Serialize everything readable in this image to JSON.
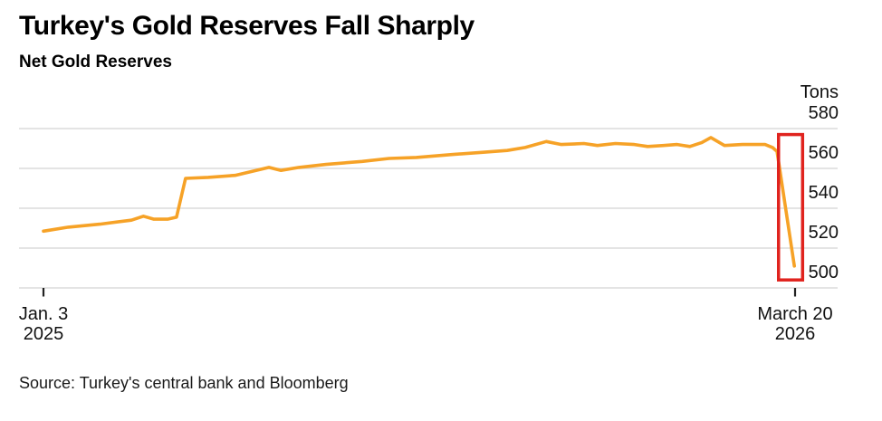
{
  "header": {
    "title": "Turkey's Gold Reserves Fall Sharply",
    "subtitle": "Net Gold Reserves"
  },
  "source": {
    "text": "Source: Turkey's central bank and Bloomberg"
  },
  "colors": {
    "line": "#F6A227",
    "highlight_box": "#E0231E",
    "gridline": "#DBDBDB",
    "axis_tick": "#222222",
    "label_text": "#111111"
  },
  "chart_data": {
    "type": "line",
    "title": "Turkey's Gold Reserves Fall Sharply",
    "subtitle": "Net Gold Reserves",
    "unit_label": "Tons",
    "ylabel": "Tons",
    "ylim": [
      500,
      580
    ],
    "yticks": [
      580,
      560,
      540,
      520,
      500
    ],
    "grid": true,
    "x_axis": {
      "description": "x runs from Jan. 3 2025 (frac 0) to March 20 2026 (frac 1)",
      "start_label_line1": "Jan. 3",
      "start_label_line2": "2025",
      "end_label_line1": "March 20",
      "end_label_line2": "2026"
    },
    "series": [
      {
        "name": "Net Gold Reserves",
        "color": "#F6A227",
        "points": [
          [
            0.0,
            528.5
          ],
          [
            0.033,
            530.5
          ],
          [
            0.075,
            532.0
          ],
          [
            0.117,
            534.0
          ],
          [
            0.133,
            536.0
          ],
          [
            0.147,
            534.5
          ],
          [
            0.165,
            534.5
          ],
          [
            0.177,
            535.5
          ],
          [
            0.189,
            555.0
          ],
          [
            0.219,
            555.5
          ],
          [
            0.255,
            556.5
          ],
          [
            0.3,
            560.5
          ],
          [
            0.316,
            559.0
          ],
          [
            0.34,
            560.5
          ],
          [
            0.376,
            562.0
          ],
          [
            0.424,
            563.5
          ],
          [
            0.46,
            565.0
          ],
          [
            0.496,
            565.5
          ],
          [
            0.545,
            567.0
          ],
          [
            0.581,
            568.0
          ],
          [
            0.617,
            569.0
          ],
          [
            0.641,
            570.5
          ],
          [
            0.669,
            573.5
          ],
          [
            0.689,
            572.0
          ],
          [
            0.719,
            572.5
          ],
          [
            0.737,
            571.5
          ],
          [
            0.761,
            572.5
          ],
          [
            0.786,
            572.0
          ],
          [
            0.804,
            571.0
          ],
          [
            0.825,
            571.5
          ],
          [
            0.843,
            572.0
          ],
          [
            0.86,
            571.0
          ],
          [
            0.876,
            573.0
          ],
          [
            0.888,
            575.5
          ],
          [
            0.906,
            571.5
          ],
          [
            0.93,
            572.0
          ],
          [
            0.96,
            572.0
          ],
          [
            0.97,
            570.5
          ],
          [
            0.976,
            568.5
          ],
          [
            0.999,
            511.0
          ]
        ]
      }
    ],
    "annotation_box": {
      "x0_frac": 0.978,
      "x1_frac": 1.01,
      "y_top": 577,
      "y_bottom": 504,
      "color": "#E0231E",
      "meaning": "highlights sharp drop at end of series"
    }
  }
}
